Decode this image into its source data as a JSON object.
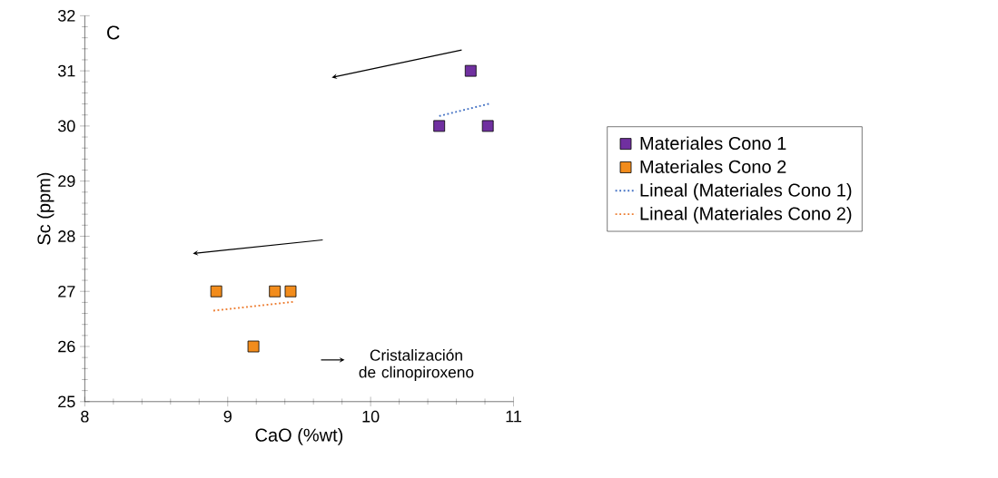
{
  "chart_data": {
    "type": "scatter",
    "xlabel": "CaO (%wt)",
    "ylabel": "Sc (ppm)",
    "xlim": [
      8,
      11
    ],
    "xticks": [
      8,
      9,
      10,
      11
    ],
    "ylim": [
      25,
      32
    ],
    "yticks": [
      25,
      26,
      27,
      28,
      29,
      30,
      31,
      32
    ],
    "grid": false,
    "legend": "right",
    "annotations": [
      "C",
      "Cristalización de clinopiroxeno"
    ],
    "series": [
      {
        "name": "Materiales Cono 1",
        "marker": "square",
        "color": "#7030a0",
        "x": [
          10.48,
          10.7,
          10.82
        ],
        "values": [
          30,
          31,
          30
        ]
      },
      {
        "name": "Materiales Cono 2",
        "marker": "square",
        "color": "#f28c1c",
        "x": [
          8.92,
          9.33,
          9.44,
          9.18
        ],
        "values": [
          27,
          27,
          27,
          26
        ]
      },
      {
        "name": "Lineal (Materiales Cono 1)",
        "type": "line",
        "line_style": "dotted",
        "marker": "none",
        "color": "#4472c4",
        "x": [
          10.48,
          10.84
        ],
        "values": [
          30.18,
          30.41
        ]
      },
      {
        "name": "Lineal (Materiales Cono 2)",
        "type": "line",
        "line_style": "dotted",
        "marker": "none",
        "color": "#ed7d31",
        "x": [
          8.9,
          9.46
        ],
        "values": [
          26.65,
          26.81
        ]
      }
    ]
  }
}
